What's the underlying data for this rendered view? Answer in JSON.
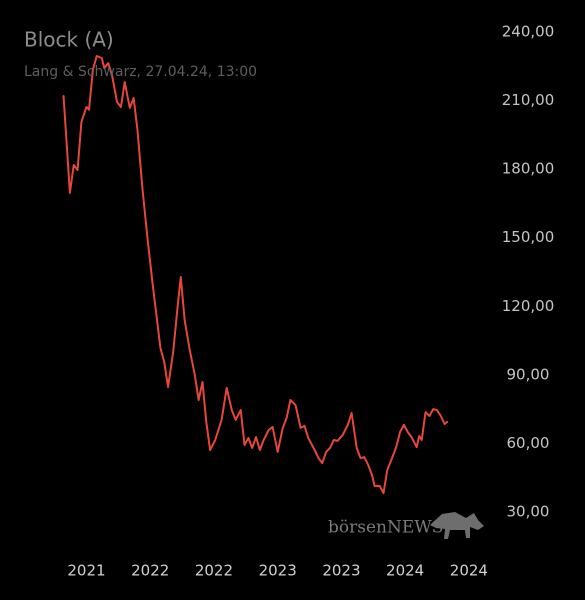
{
  "chart_data": {
    "type": "line",
    "title": "Block (A)",
    "subtitle": "Lang & Schwarz, 27.04.24, 13:00",
    "watermark": "börsenNEWS",
    "xlim": [
      2020.9,
      2024.65
    ],
    "xticks": [
      {
        "value": 2021.5,
        "label": "2021"
      },
      {
        "value": 2022.0,
        "label": "2022"
      },
      {
        "value": 2022.5,
        "label": "2022"
      },
      {
        "value": 2023.0,
        "label": "2023"
      },
      {
        "value": 2023.5,
        "label": "2023"
      },
      {
        "value": 2024.0,
        "label": "2024"
      },
      {
        "value": 2024.5,
        "label": "2024"
      }
    ],
    "ylim": [
      30,
      240
    ],
    "yticks": [
      {
        "value": 30,
        "label": "30,00"
      },
      {
        "value": 60,
        "label": "60,00"
      },
      {
        "value": 90,
        "label": "90,00"
      },
      {
        "value": 120,
        "label": "120,00"
      },
      {
        "value": 150,
        "label": "150,00"
      },
      {
        "value": 180,
        "label": "180,00"
      },
      {
        "value": 210,
        "label": "210,00"
      },
      {
        "value": 240,
        "label": "240,00"
      }
    ],
    "series": [
      {
        "color": "#e5473b",
        "x": [
          2021.32,
          2021.37,
          2021.4,
          2021.43,
          2021.46,
          2021.5,
          2021.52,
          2021.55,
          2021.58,
          2021.62,
          2021.64,
          2021.67,
          2021.7,
          2021.74,
          2021.77,
          2021.8,
          2021.84,
          2021.87,
          2021.9,
          2021.94,
          2021.98,
          2022.02,
          2022.08,
          2022.11,
          2022.14,
          2022.18,
          2022.22,
          2022.24,
          2022.27,
          2022.31,
          2022.35,
          2022.38,
          2022.41,
          2022.44,
          2022.47,
          2022.51,
          2022.56,
          2022.6,
          2022.64,
          2022.67,
          2022.71,
          2022.74,
          2022.77,
          2022.8,
          2022.83,
          2022.86,
          2022.89,
          2022.93,
          2022.96,
          2023.0,
          2023.04,
          2023.07,
          2023.1,
          2023.14,
          2023.18,
          2023.21,
          2023.24,
          2023.29,
          2023.32,
          2023.35,
          2023.38,
          2023.41,
          2023.44,
          2023.47,
          2023.51,
          2023.55,
          2023.58,
          2023.62,
          2023.65,
          2023.68,
          2023.71,
          2023.74,
          2023.76,
          2023.8,
          2023.83,
          2023.86,
          2023.9,
          2023.93,
          2023.96,
          2023.99,
          2024.02,
          2024.05,
          2024.09,
          2024.11,
          2024.13,
          2024.16,
          2024.19,
          2024.22,
          2024.25,
          2024.28,
          2024.31,
          2024.33
        ],
        "values": [
          212,
          169.6,
          181.8,
          179.6,
          200.6,
          207.2,
          206,
          223.4,
          229.5,
          228.6,
          224.2,
          226.4,
          221.2,
          209.4,
          207.2,
          218.1,
          206.8,
          211.1,
          197.1,
          170.9,
          149,
          129.3,
          101.8,
          95.6,
          84.7,
          100,
          122.7,
          132.8,
          114,
          100.9,
          89.9,
          79,
          86.9,
          69.4,
          57.1,
          61.5,
          70.3,
          84.3,
          74.6,
          70.3,
          74.6,
          59.3,
          62.4,
          58,
          62.8,
          57.1,
          61.5,
          65.9,
          67.2,
          56.3,
          66.8,
          71.1,
          79,
          76.8,
          66.8,
          67.7,
          62.4,
          57.1,
          53.6,
          51.4,
          56.3,
          58,
          61.5,
          61.1,
          63.7,
          68.1,
          73.3,
          58,
          53.6,
          54,
          50.6,
          46.2,
          41.4,
          41.4,
          38.3,
          48.4,
          54,
          58.4,
          65,
          68.1,
          65,
          62.8,
          58.4,
          63.2,
          61.5,
          73.7,
          72,
          75,
          74.6,
          72,
          68.5,
          69.4
        ]
      }
    ]
  }
}
